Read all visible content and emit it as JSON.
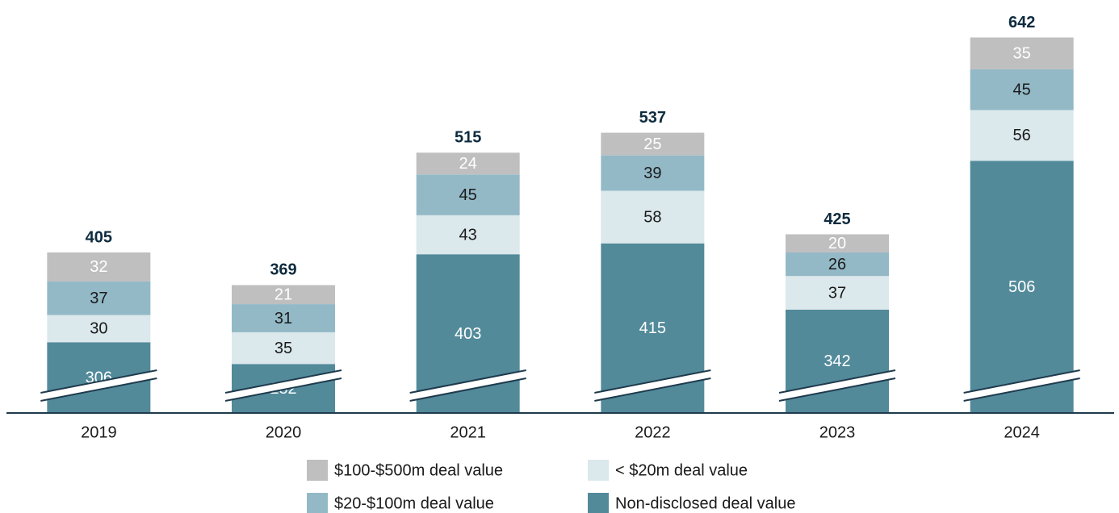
{
  "chart_data": {
    "type": "bar",
    "stacked": true,
    "axis_break": true,
    "categories": [
      "2019",
      "2020",
      "2021",
      "2022",
      "2023",
      "2024"
    ],
    "series": [
      {
        "name": "Non-disclosed deal value",
        "color": "#528a9a",
        "values": [
          306,
          282,
          403,
          415,
          342,
          506
        ]
      },
      {
        "name": "< $20m deal value",
        "color": "#dbe8ec",
        "values": [
          30,
          35,
          43,
          58,
          37,
          56
        ]
      },
      {
        "name": "$20-$100m deal value",
        "color": "#93b9c7",
        "values": [
          37,
          31,
          45,
          39,
          26,
          45
        ]
      },
      {
        "name": "$100-$500m deal value",
        "color": "#bfbfbf",
        "values": [
          32,
          21,
          24,
          25,
          20,
          35
        ]
      }
    ],
    "totals": [
      405,
      369,
      515,
      537,
      425,
      642
    ],
    "ylim": [
      228,
      670
    ]
  }
}
